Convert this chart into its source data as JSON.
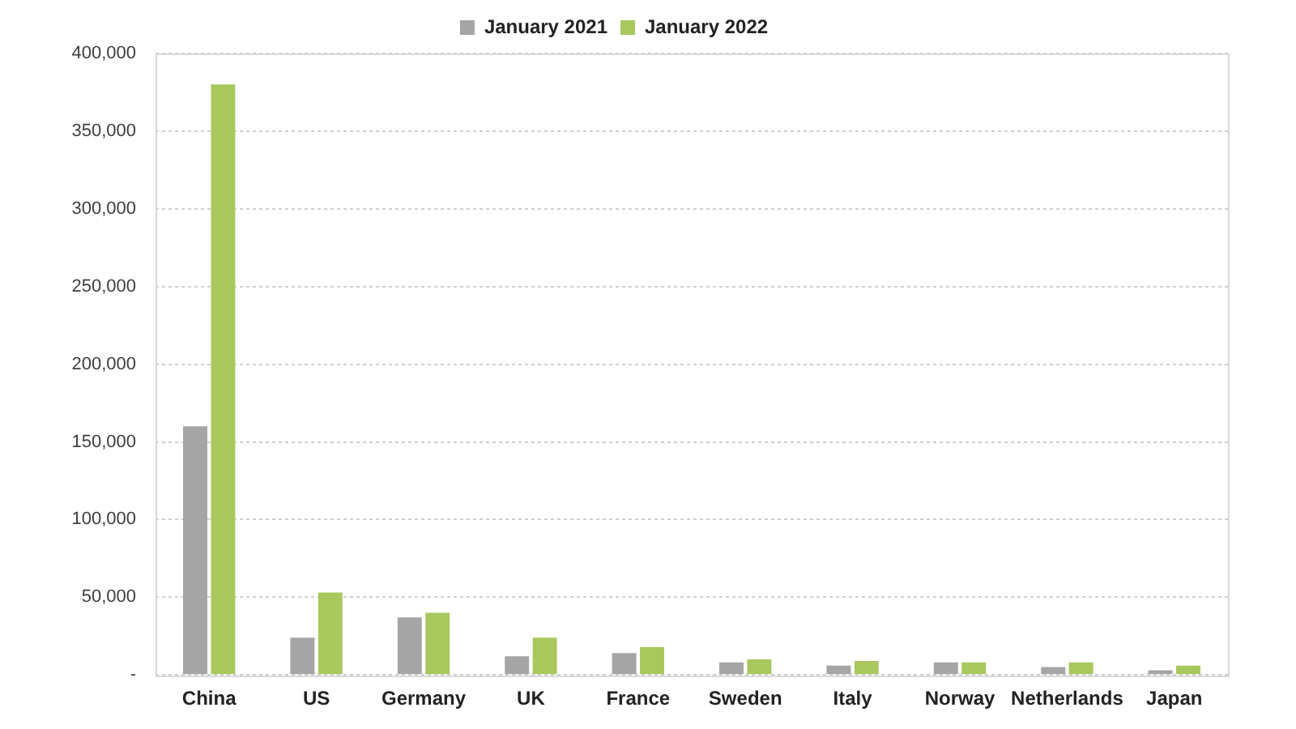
{
  "chart_data": {
    "type": "bar",
    "categories": [
      "China",
      "US",
      "Germany",
      "UK",
      "France",
      "Sweden",
      "Italy",
      "Norway",
      "Netherlands",
      "Japan"
    ],
    "series": [
      {
        "name": "January 2021",
        "color": "#a5a5a5",
        "values": [
          160000,
          24000,
          37000,
          12000,
          14000,
          8000,
          6000,
          8000,
          5000,
          3000
        ]
      },
      {
        "name": "January 2022",
        "color": "#a8c85e",
        "values": [
          380000,
          53000,
          40000,
          24000,
          18000,
          10000,
          9000,
          8000,
          8000,
          6000
        ]
      }
    ],
    "ylim": [
      0,
      400000
    ],
    "yticks": [
      {
        "value": 0,
        "label": "-"
      },
      {
        "value": 50000,
        "label": "50,000"
      },
      {
        "value": 100000,
        "label": "100,000"
      },
      {
        "value": 150000,
        "label": "150,000"
      },
      {
        "value": 200000,
        "label": "200,000"
      },
      {
        "value": 250000,
        "label": "250,000"
      },
      {
        "value": 300000,
        "label": "300,000"
      },
      {
        "value": 350000,
        "label": "350,000"
      },
      {
        "value": 400000,
        "label": "400,000"
      }
    ],
    "grid": "y",
    "legend": "top"
  }
}
